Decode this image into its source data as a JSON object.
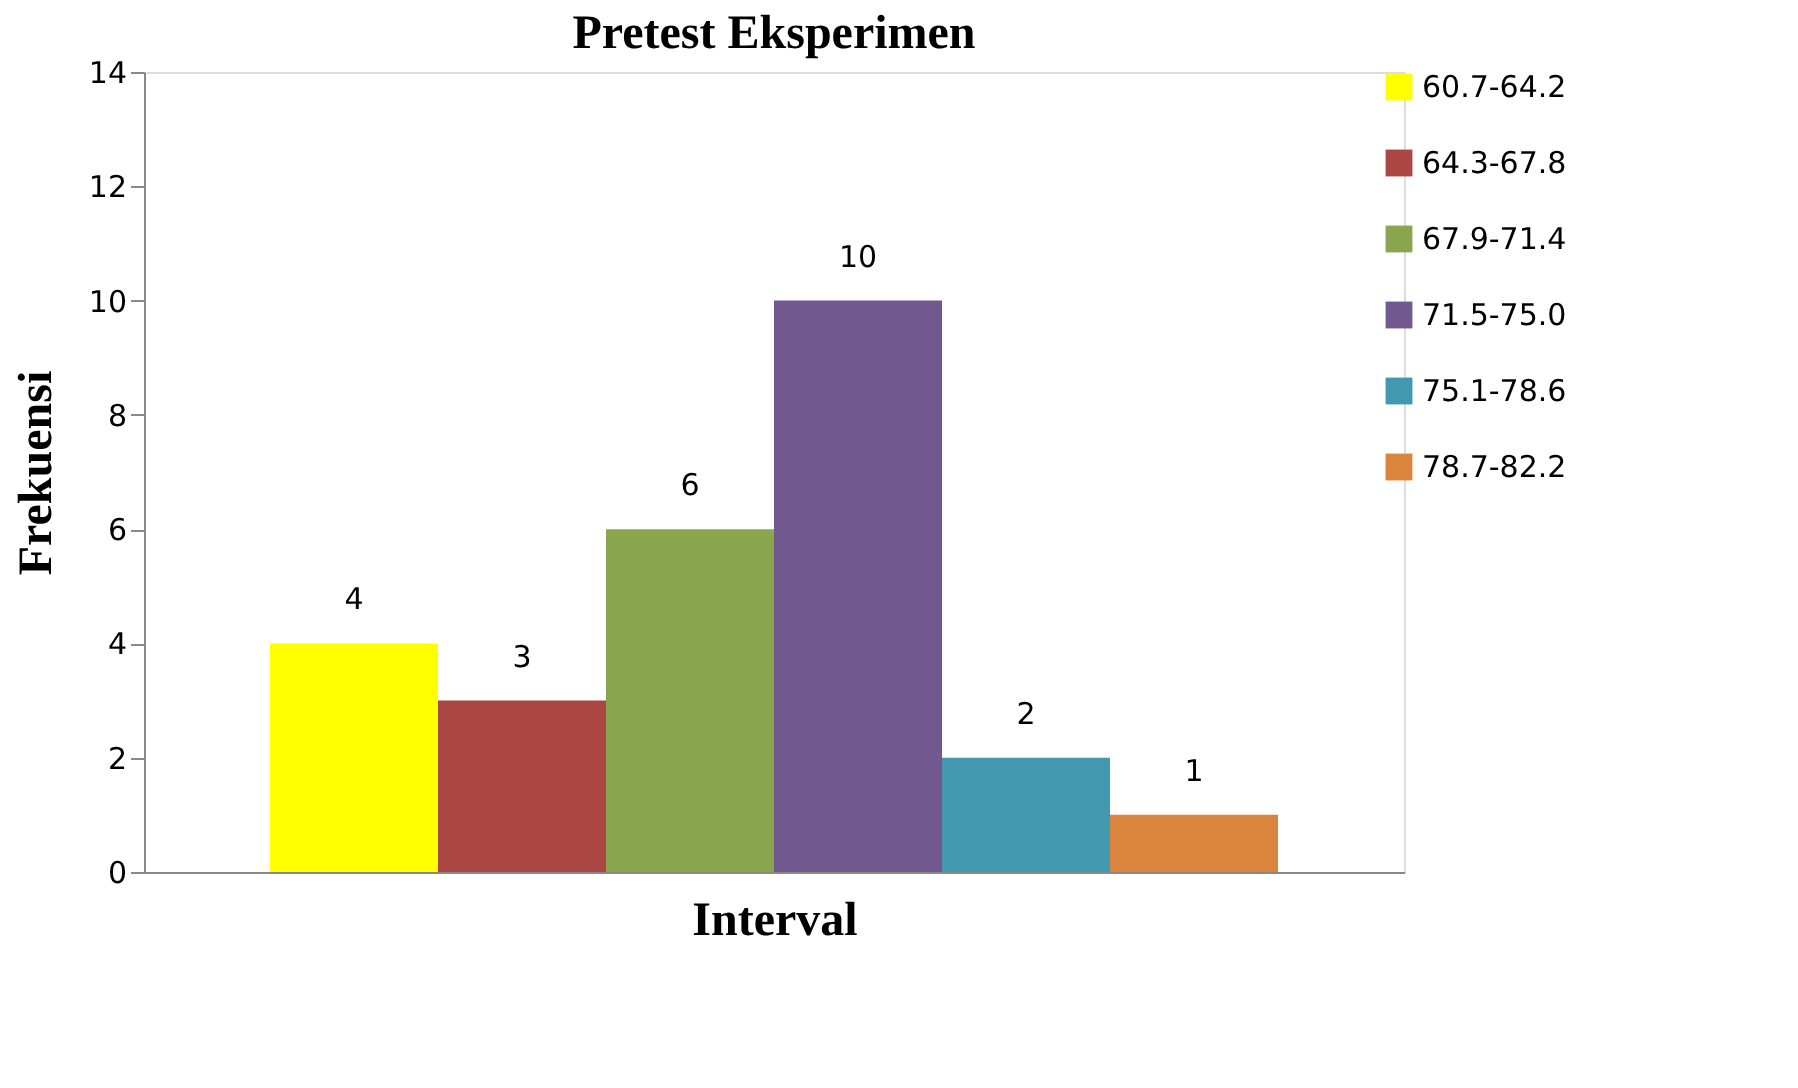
{
  "chart_data": {
    "type": "bar",
    "title": "Pretest Eksperimen",
    "xlabel": "Interval",
    "ylabel": "Frekuensi",
    "categories": [
      null
    ],
    "series": [
      {
        "name": "60.7-64.2",
        "color": "#ffff00",
        "values": [
          4
        ]
      },
      {
        "name": "64.3-67.8",
        "color": "#aa4643",
        "values": [
          3
        ]
      },
      {
        "name": "67.9-71.4",
        "color": "#89a54e",
        "values": [
          6
        ]
      },
      {
        "name": "71.5-75.0",
        "color": "#71588f",
        "values": [
          10
        ]
      },
      {
        "name": "75.1-78.6",
        "color": "#4198af",
        "values": [
          2
        ]
      },
      {
        "name": "78.7-82.2",
        "color": "#db843d",
        "values": [
          1
        ]
      }
    ],
    "ylim": [
      0,
      14
    ],
    "yticks": [
      0,
      2,
      4,
      6,
      8,
      10,
      12,
      14
    ],
    "data_labels": true,
    "legend": "right",
    "grid": false,
    "tick_labels": "y"
  }
}
